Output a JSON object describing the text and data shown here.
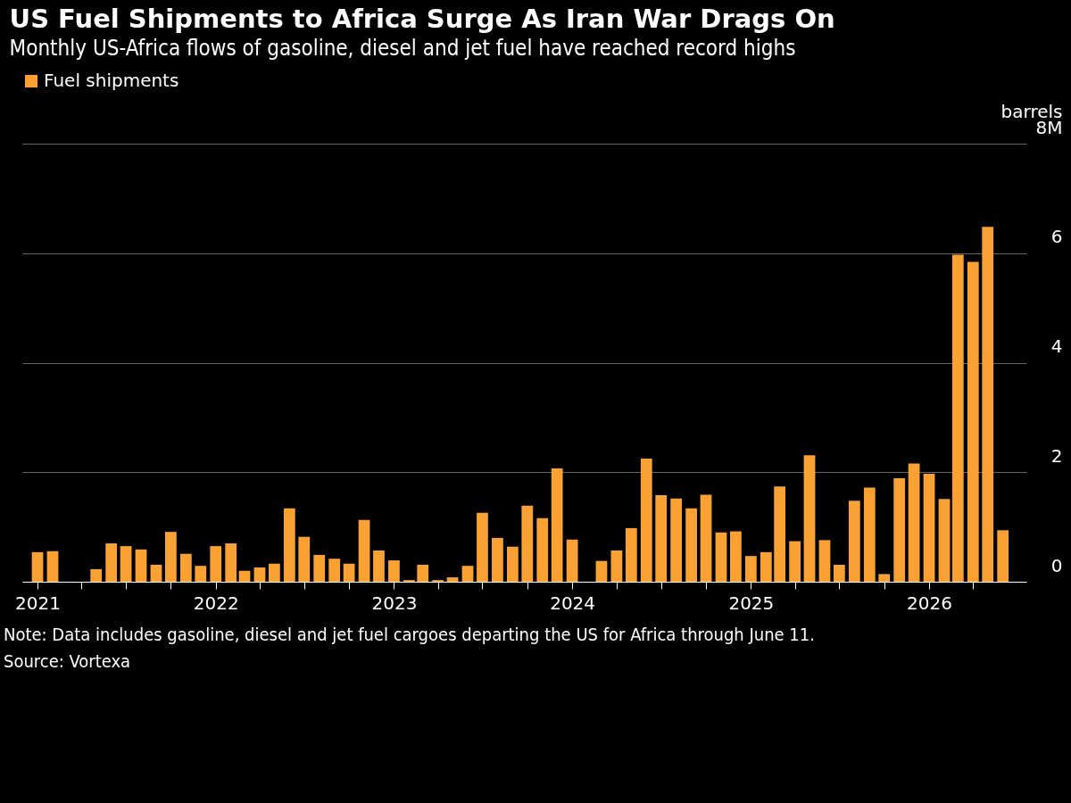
{
  "chart_data": {
    "type": "bar",
    "title": "US Fuel Shipments to Africa Surge As Iran War Drags On",
    "subtitle": "Monthly US-Africa flows of gasoline, diesel and jet fuel have reached record highs",
    "ylabel": "barrels",
    "x": [
      "2021-01",
      "2021-02",
      "2021-03",
      "2021-04",
      "2021-05",
      "2021-06",
      "2021-07",
      "2021-08",
      "2021-09",
      "2021-10",
      "2021-11",
      "2021-12",
      "2022-01",
      "2022-02",
      "2022-03",
      "2022-04",
      "2022-05",
      "2022-06",
      "2022-07",
      "2022-08",
      "2022-09",
      "2022-10",
      "2022-11",
      "2022-12",
      "2023-01",
      "2023-02",
      "2023-03",
      "2023-04",
      "2023-05",
      "2023-06",
      "2023-07",
      "2023-08",
      "2023-09",
      "2023-10",
      "2023-11",
      "2023-12",
      "2024-01",
      "2024-02",
      "2024-03",
      "2024-04",
      "2024-05",
      "2024-06",
      "2024-07",
      "2024-08",
      "2024-09",
      "2024-10",
      "2024-11",
      "2024-12",
      "2025-01",
      "2025-02",
      "2025-03",
      "2025-04",
      "2025-05",
      "2025-06",
      "2025-07",
      "2025-08",
      "2025-09",
      "2025-10",
      "2025-11",
      "2025-12",
      "2026-01",
      "2026-02",
      "2026-03",
      "2026-04",
      "2026-05",
      "2026-06"
    ],
    "series": [
      {
        "name": "Fuel shipments",
        "color": "#f9a133",
        "values": [
          0.54,
          0.56,
          0,
          0,
          0.23,
          0.7,
          0.65,
          0.59,
          0.31,
          0.91,
          0.51,
          0.29,
          0.65,
          0.7,
          0.2,
          0.26,
          0.33,
          1.34,
          0.82,
          0.49,
          0.42,
          0.33,
          1.13,
          0.57,
          0.39,
          0.03,
          0.31,
          0.03,
          0.08,
          0.29,
          1.26,
          0.8,
          0.64,
          1.39,
          1.16,
          2.07,
          0.77,
          0,
          0.38,
          0.57,
          0.98,
          2.25,
          1.58,
          1.52,
          1.34,
          1.59,
          0.9,
          0.92,
          0.47,
          0.54,
          1.74,
          0.74,
          2.31,
          0.76,
          0.31,
          1.48,
          1.72,
          0.14,
          1.89,
          2.16,
          1.97,
          1.51,
          5.97,
          5.84,
          6.48,
          0.94
        ]
      }
    ],
    "xlim": [
      "2020-12-10",
      "2026-07-10"
    ],
    "xticks": [
      {
        "value": "2021-01",
        "label": "2021"
      },
      {
        "value": "2021-04",
        "label": null
      },
      {
        "value": "2021-07",
        "label": null
      },
      {
        "value": "2021-10",
        "label": null
      },
      {
        "value": "2022-01",
        "label": "2022"
      },
      {
        "value": "2022-04",
        "label": null
      },
      {
        "value": "2022-07",
        "label": null
      },
      {
        "value": "2022-10",
        "label": null
      },
      {
        "value": "2023-01",
        "label": "2023"
      },
      {
        "value": "2023-04",
        "label": null
      },
      {
        "value": "2023-07",
        "label": null
      },
      {
        "value": "2023-10",
        "label": null
      },
      {
        "value": "2024-01",
        "label": "2024"
      },
      {
        "value": "2024-04",
        "label": null
      },
      {
        "value": "2024-07",
        "label": null
      },
      {
        "value": "2024-10",
        "label": null
      },
      {
        "value": "2025-01",
        "label": "2025"
      },
      {
        "value": "2025-04",
        "label": null
      },
      {
        "value": "2025-07",
        "label": null
      },
      {
        "value": "2025-10",
        "label": null
      },
      {
        "value": "2026-01",
        "label": "2026"
      },
      {
        "value": "2026-04",
        "label": null
      }
    ],
    "ylim": [
      0,
      8
    ],
    "yticks": [
      0,
      2,
      4,
      6,
      {
        "value": 8,
        "label": "8M"
      }
    ],
    "grid": "y",
    "legend": "top left",
    "annotations": [
      "Note: Data includes gasoline, diesel and jet fuel cargoes departing the US for Africa through June 11.",
      "Source: Vortexa"
    ]
  }
}
